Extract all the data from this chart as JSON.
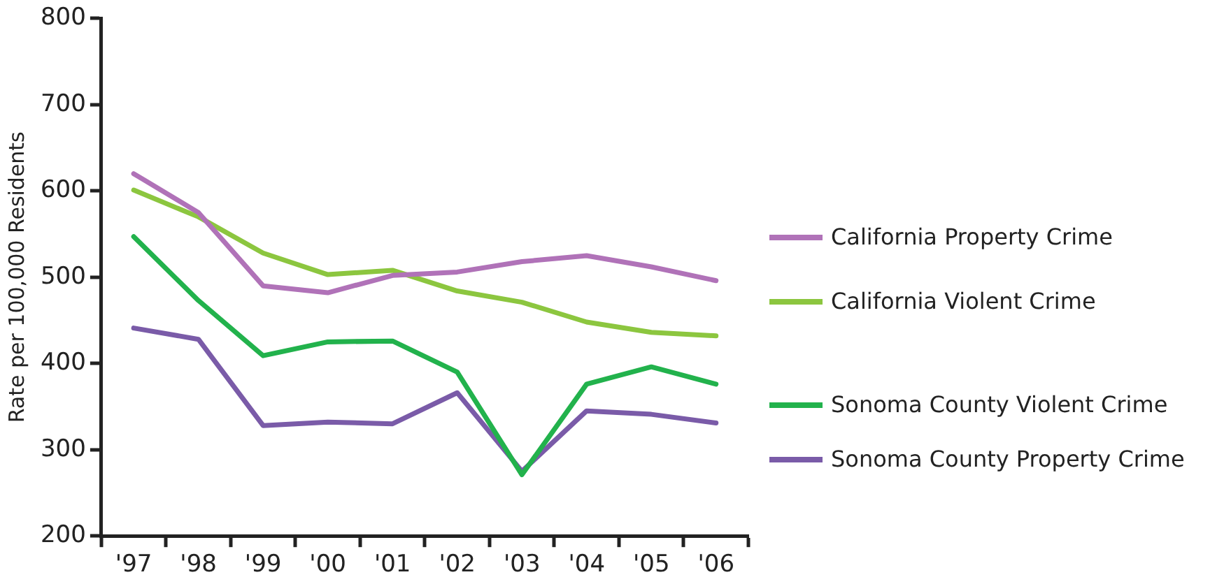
{
  "chart_data": {
    "type": "line",
    "ylabel": "Rate per 100,000 Residents",
    "categories": [
      "'97",
      "'98",
      "'99",
      "'00",
      "'01",
      "'02",
      "'03",
      "'04",
      "'05",
      "'06"
    ],
    "series": [
      {
        "name": "California Property Crime",
        "color": "#b072b8",
        "values": [
          620,
          575,
          490,
          482,
          502,
          506,
          518,
          525,
          512,
          496
        ]
      },
      {
        "name": "California Violent Crime",
        "color": "#8cc63f",
        "values": [
          601,
          570,
          528,
          503,
          508,
          484,
          471,
          448,
          436,
          432
        ]
      },
      {
        "name": "Sonoma County Violent Crime",
        "color": "#22b24c",
        "values": [
          547,
          473,
          409,
          425,
          426,
          390,
          271,
          376,
          396,
          376
        ]
      },
      {
        "name": "Sonoma County Property Crime",
        "color": "#7a5ba8",
        "values": [
          441,
          428,
          328,
          332,
          330,
          366,
          275,
          345,
          341,
          331
        ]
      }
    ],
    "ylim": [
      200,
      800
    ],
    "yticks": [
      200,
      300,
      400,
      500,
      600,
      700,
      800
    ],
    "grid": false,
    "legend": "right",
    "marker": "none",
    "line_style": "solid"
  }
}
